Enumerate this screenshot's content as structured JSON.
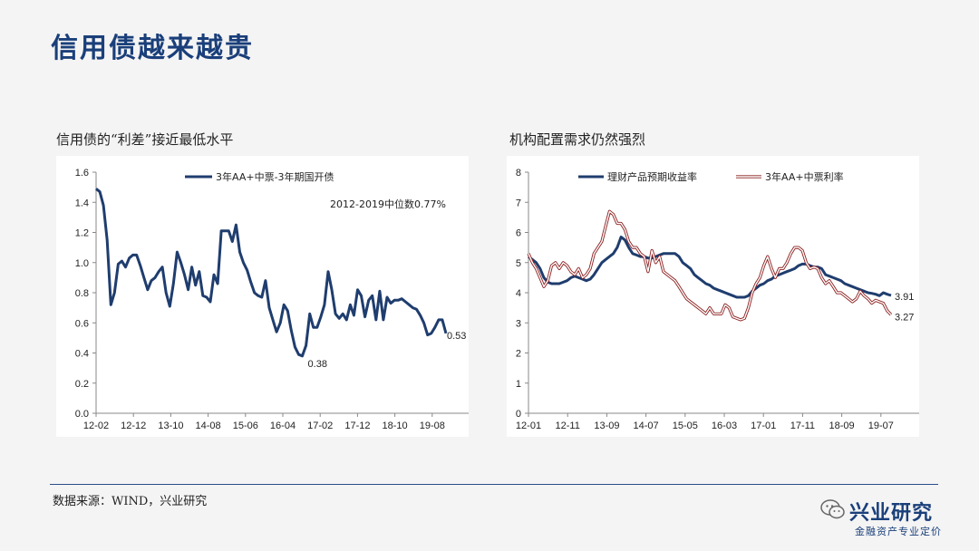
{
  "page": {
    "title": "信用债越来越贵",
    "source": "数据来源：WIND，兴业研究",
    "logo_text": "兴业研究",
    "logo_sub": "金融资产专业定价"
  },
  "chart_data": [
    {
      "type": "line",
      "title": "信用债的“利差”接近最低水平",
      "ylim": [
        0,
        1.6
      ],
      "yticks": [
        "0.0",
        "0.2",
        "0.4",
        "0.6",
        "0.8",
        "1.0",
        "1.2",
        "1.4",
        "1.6"
      ],
      "xticks": [
        "12-02",
        "12-12",
        "13-10",
        "14-08",
        "15-06",
        "16-04",
        "17-02",
        "17-12",
        "18-10",
        "19-08"
      ],
      "annotation": "2012-2019中位数0.77%",
      "label_min": "0.38",
      "label_last": "0.53",
      "series": [
        {
          "name": "3年AA+中票-3年期国开债",
          "color": "#1f3d6e",
          "values": [
            1.49,
            1.47,
            1.38,
            1.15,
            0.72,
            0.8,
            0.99,
            1.01,
            0.97,
            1.03,
            1.05,
            1.05,
            0.98,
            0.9,
            0.82,
            0.88,
            0.9,
            0.94,
            0.97,
            0.8,
            0.71,
            0.86,
            1.07,
            1.0,
            0.92,
            0.82,
            0.97,
            0.85,
            0.94,
            0.78,
            0.77,
            0.74,
            0.92,
            0.86,
            1.21,
            1.21,
            1.21,
            1.14,
            1.25,
            1.07,
            1.0,
            0.95,
            0.87,
            0.8,
            0.78,
            0.77,
            0.88,
            0.7,
            0.62,
            0.54,
            0.6,
            0.72,
            0.68,
            0.55,
            0.44,
            0.39,
            0.38,
            0.45,
            0.66,
            0.57,
            0.57,
            0.64,
            0.72,
            0.94,
            0.82,
            0.66,
            0.63,
            0.66,
            0.62,
            0.72,
            0.65,
            0.82,
            0.78,
            0.64,
            0.75,
            0.78,
            0.62,
            0.81,
            0.62,
            0.77,
            0.73,
            0.75,
            0.75,
            0.76,
            0.74,
            0.72,
            0.7,
            0.69,
            0.65,
            0.6,
            0.52,
            0.53,
            0.57,
            0.62,
            0.62,
            0.53
          ]
        }
      ]
    },
    {
      "type": "line",
      "title": "机构配置需求仍然强烈",
      "ylim": [
        0,
        8
      ],
      "yticks": [
        "0",
        "1",
        "2",
        "3",
        "4",
        "5",
        "6",
        "7",
        "8"
      ],
      "xticks": [
        "12-01",
        "12-11",
        "13-09",
        "14-07",
        "15-05",
        "16-03",
        "17-01",
        "17-11",
        "18-09",
        "19-07"
      ],
      "label_series1_last": "3.91",
      "label_series2_last": "3.27",
      "series": [
        {
          "name": "理财产品预期收益率",
          "color": "#1f3d6e",
          "values": [
            5.2,
            5.1,
            5.0,
            4.8,
            4.5,
            4.35,
            4.3,
            4.3,
            4.3,
            4.35,
            4.4,
            4.5,
            4.55,
            4.5,
            4.45,
            4.4,
            4.45,
            4.6,
            4.8,
            5.0,
            5.1,
            5.2,
            5.3,
            5.5,
            5.85,
            5.75,
            5.5,
            5.3,
            5.25,
            5.2,
            5.2,
            5.15,
            5.15,
            5.2,
            5.25,
            5.3,
            5.3,
            5.3,
            5.3,
            5.2,
            5.0,
            4.9,
            4.8,
            4.6,
            4.5,
            4.4,
            4.3,
            4.25,
            4.15,
            4.1,
            4.05,
            4.0,
            3.95,
            3.9,
            3.85,
            3.85,
            3.85,
            3.9,
            4.05,
            4.15,
            4.25,
            4.3,
            4.4,
            4.45,
            4.55,
            4.6,
            4.65,
            4.7,
            4.75,
            4.8,
            4.9,
            4.95,
            4.95,
            4.9,
            4.85,
            4.85,
            4.8,
            4.6,
            4.55,
            4.5,
            4.45,
            4.4,
            4.3,
            4.25,
            4.2,
            4.15,
            4.1,
            4.05,
            4.0,
            3.98,
            3.95,
            3.9,
            4.0,
            3.95,
            3.91
          ]
        },
        {
          "name": "3年AA+中票利率",
          "color": "#e05555",
          "values": [
            5.3,
            5.0,
            4.8,
            4.5,
            4.2,
            4.4,
            4.9,
            5.0,
            4.8,
            5.0,
            4.9,
            4.7,
            4.6,
            4.8,
            4.5,
            4.6,
            4.8,
            5.3,
            5.5,
            5.7,
            6.2,
            6.7,
            6.6,
            6.3,
            6.3,
            6.1,
            5.7,
            5.5,
            5.5,
            5.3,
            5.2,
            4.7,
            5.4,
            5.0,
            5.2,
            4.7,
            4.6,
            4.5,
            4.4,
            4.2,
            4.0,
            3.8,
            3.7,
            3.6,
            3.5,
            3.4,
            3.3,
            3.5,
            3.3,
            3.3,
            3.3,
            3.6,
            3.5,
            3.2,
            3.15,
            3.1,
            3.15,
            3.5,
            4.0,
            4.3,
            4.5,
            4.9,
            5.2,
            4.8,
            4.5,
            4.8,
            4.8,
            5.0,
            5.3,
            5.5,
            5.5,
            5.4,
            5.0,
            4.8,
            4.85,
            4.8,
            4.5,
            4.3,
            4.4,
            4.2,
            4.0,
            4.0,
            3.9,
            3.8,
            3.7,
            3.8,
            4.05,
            3.9,
            3.8,
            3.65,
            3.75,
            3.7,
            3.65,
            3.4,
            3.27
          ]
        }
      ]
    }
  ]
}
